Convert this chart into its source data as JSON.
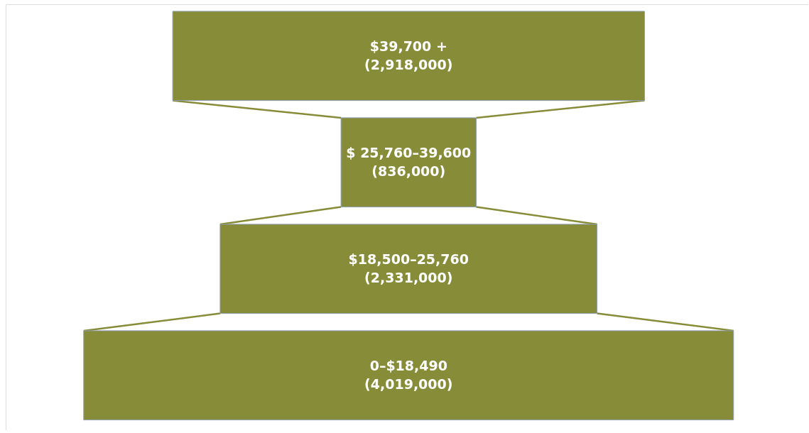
{
  "chart_data": {
    "type": "other",
    "categories": [
      "$39,700 +",
      "$ 25,760–39,600",
      "$18,500–25,760",
      "0–$18,490"
    ],
    "values": [
      2918000,
      836000,
      2331000,
      4019000
    ],
    "value_labels": [
      "(2,918,000)",
      "(836,000)",
      "(2,331,000)",
      "(4,019,000)"
    ],
    "color": "#878c38"
  }
}
